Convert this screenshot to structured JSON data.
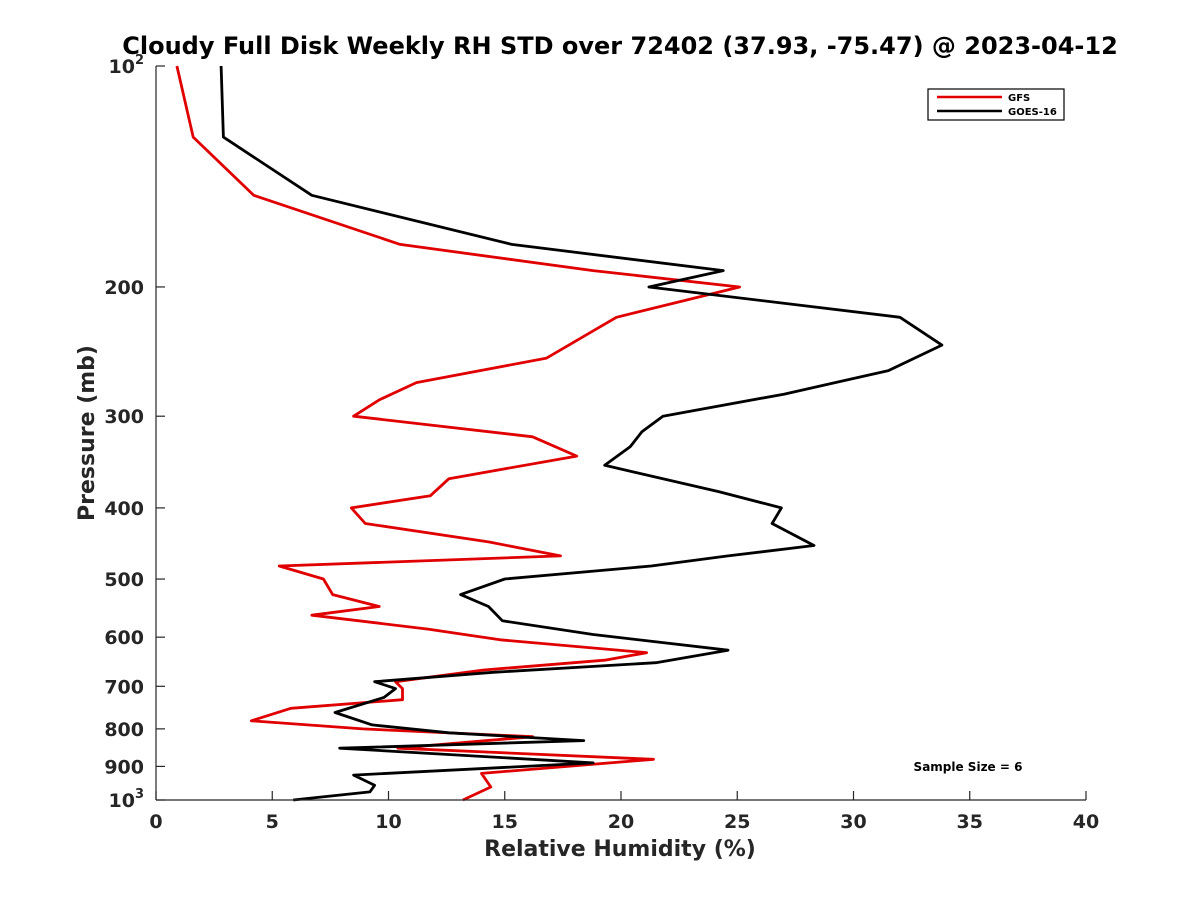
{
  "chart_data": {
    "type": "line",
    "title": "Cloudy Full Disk Weekly RH STD over 72402 (37.93, -75.47) @ 2023-04-12",
    "xlabel": "Relative Humidity (%)",
    "ylabel": "Pressure (mb)",
    "xlim": [
      0,
      40
    ],
    "ylim": [
      100,
      1000
    ],
    "y_scale": "log",
    "y_reversed": true,
    "grid": false,
    "legend_position": "top-right",
    "x_ticks": [
      "0",
      "5",
      "10",
      "15",
      "20",
      "25",
      "30",
      "35",
      "40"
    ],
    "y_ticks": [
      {
        "value": 100,
        "base": "10",
        "exp": "2"
      },
      {
        "value": 200,
        "label": "200"
      },
      {
        "value": 300,
        "label": "300"
      },
      {
        "value": 400,
        "label": "400"
      },
      {
        "value": 500,
        "label": "500"
      },
      {
        "value": 600,
        "label": "600"
      },
      {
        "value": 700,
        "label": "700"
      },
      {
        "value": 800,
        "label": "800"
      },
      {
        "value": 900,
        "label": "900"
      },
      {
        "value": 1000,
        "base": "10",
        "exp": "3"
      }
    ],
    "annotation": "Sample Size = 6",
    "series": [
      {
        "name": "GFS",
        "color": "#e00000",
        "points": [
          [
            0.9,
            100
          ],
          [
            1.6,
            125
          ],
          [
            4.2,
            150
          ],
          [
            10.5,
            175
          ],
          [
            18.8,
            190
          ],
          [
            25.1,
            200
          ],
          [
            19.8,
            220
          ],
          [
            16.8,
            250
          ],
          [
            11.2,
            270
          ],
          [
            9.6,
            285
          ],
          [
            8.5,
            300
          ],
          [
            16.2,
            320
          ],
          [
            18.1,
            340
          ],
          [
            12.6,
            365
          ],
          [
            11.8,
            385
          ],
          [
            8.4,
            400
          ],
          [
            9.0,
            420
          ],
          [
            14.3,
            445
          ],
          [
            17.4,
            465
          ],
          [
            5.3,
            480
          ],
          [
            7.2,
            500
          ],
          [
            7.6,
            525
          ],
          [
            9.6,
            545
          ],
          [
            6.7,
            560
          ],
          [
            11.7,
            585
          ],
          [
            14.8,
            605
          ],
          [
            21.1,
            630
          ],
          [
            19.3,
            645
          ],
          [
            14.1,
            665
          ],
          [
            10.3,
            690
          ],
          [
            10.6,
            705
          ],
          [
            10.6,
            730
          ],
          [
            5.8,
            750
          ],
          [
            4.1,
            780
          ],
          [
            8.9,
            800
          ],
          [
            16.2,
            820
          ],
          [
            10.4,
            850
          ],
          [
            21.4,
            880
          ],
          [
            14.0,
            920
          ],
          [
            14.4,
            960
          ],
          [
            13.2,
            1000
          ]
        ]
      },
      {
        "name": "GOES-16",
        "color": "#000000",
        "points": [
          [
            2.8,
            100
          ],
          [
            2.9,
            125
          ],
          [
            6.7,
            150
          ],
          [
            15.3,
            175
          ],
          [
            24.4,
            190
          ],
          [
            21.2,
            200
          ],
          [
            32.0,
            220
          ],
          [
            33.8,
            240
          ],
          [
            31.5,
            260
          ],
          [
            27.0,
            280
          ],
          [
            21.8,
            300
          ],
          [
            20.9,
            315
          ],
          [
            20.4,
            330
          ],
          [
            19.3,
            350
          ],
          [
            24.2,
            380
          ],
          [
            26.9,
            400
          ],
          [
            26.5,
            420
          ],
          [
            28.3,
            450
          ],
          [
            24.6,
            465
          ],
          [
            21.3,
            480
          ],
          [
            15.0,
            500
          ],
          [
            13.1,
            525
          ],
          [
            14.3,
            545
          ],
          [
            14.9,
            570
          ],
          [
            18.8,
            595
          ],
          [
            24.6,
            625
          ],
          [
            21.5,
            650
          ],
          [
            14.5,
            670
          ],
          [
            9.4,
            690
          ],
          [
            10.3,
            705
          ],
          [
            9.8,
            725
          ],
          [
            7.7,
            760
          ],
          [
            9.3,
            790
          ],
          [
            12.6,
            810
          ],
          [
            18.4,
            830
          ],
          [
            7.9,
            850
          ],
          [
            18.8,
            890
          ],
          [
            8.5,
            925
          ],
          [
            9.4,
            955
          ],
          [
            9.2,
            975
          ],
          [
            5.9,
            1000
          ]
        ]
      }
    ]
  }
}
